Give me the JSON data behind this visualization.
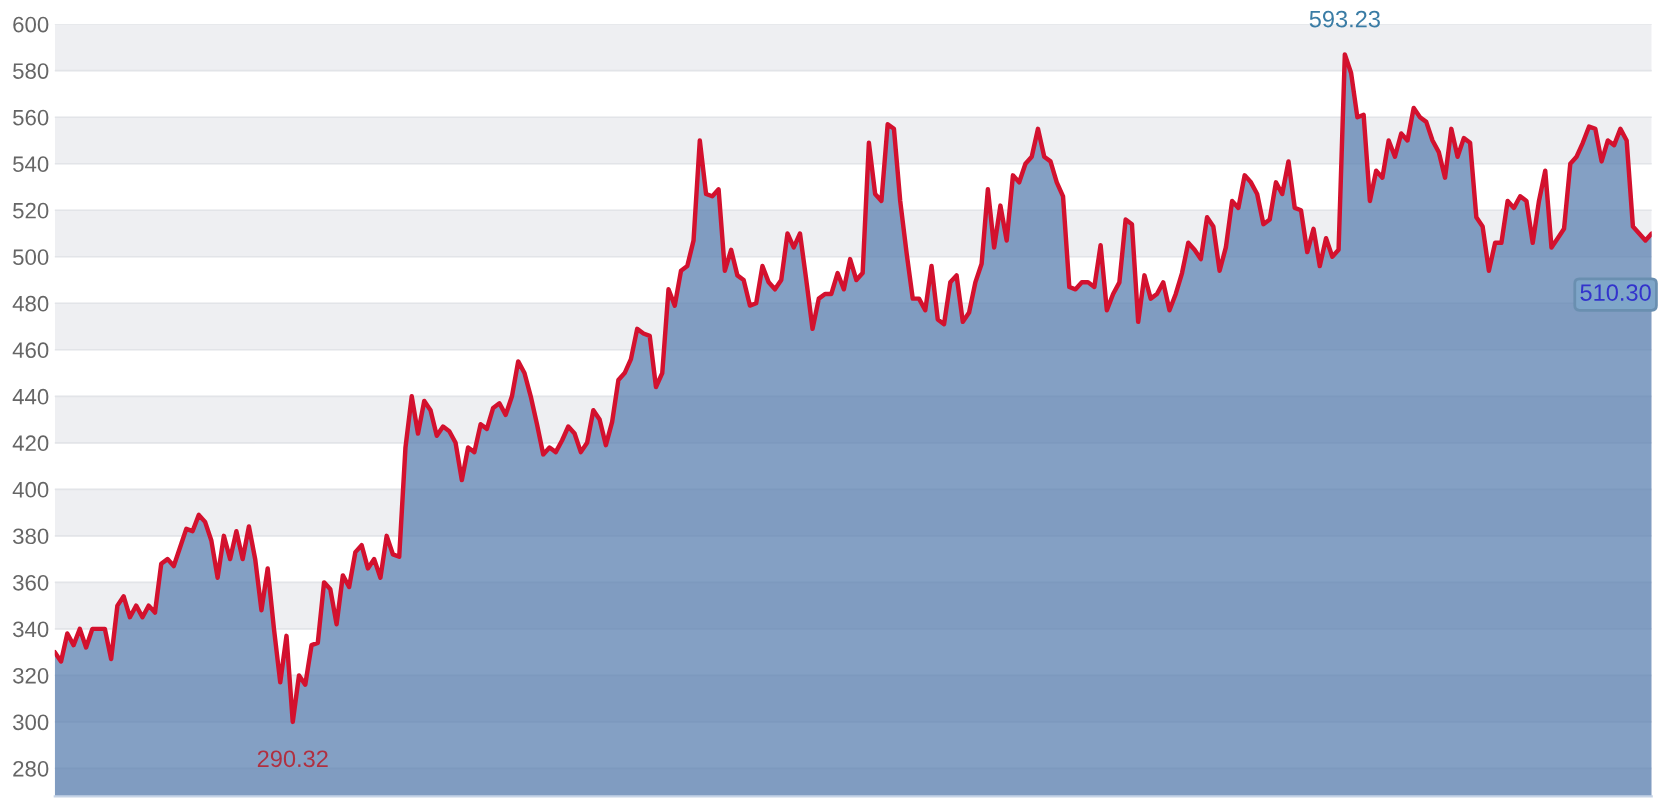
{
  "chart_data": {
    "type": "area",
    "categories": [
      null,
      null,
      null,
      null,
      null,
      null,
      null,
      null,
      null,
      null,
      null,
      null,
      null,
      null,
      null,
      null,
      null,
      null,
      null,
      null,
      null,
      null,
      null,
      null,
      null,
      null,
      null,
      null,
      null,
      null,
      null,
      null,
      null,
      null,
      null,
      null,
      null,
      null,
      null,
      null,
      null,
      null,
      null,
      null,
      null,
      null,
      null,
      null,
      null,
      null,
      null,
      null,
      null,
      null,
      null,
      null,
      null,
      null,
      null,
      null,
      null,
      null,
      null,
      null,
      null,
      null,
      null,
      null,
      null,
      null,
      null,
      null,
      null,
      null,
      null,
      null,
      null,
      null,
      null,
      null,
      null,
      null,
      null,
      null,
      null,
      null,
      null,
      null,
      null,
      null,
      null,
      null,
      null,
      null,
      null,
      null,
      null,
      null,
      null,
      null,
      null,
      null,
      null,
      null,
      null,
      null,
      null,
      null,
      null,
      null,
      null,
      null,
      null,
      null,
      null,
      null,
      null,
      null,
      null,
      null,
      null,
      null,
      null,
      null,
      null,
      null,
      null,
      null,
      null,
      null,
      null,
      null,
      null,
      null,
      null,
      null,
      null,
      null,
      null,
      null,
      null,
      null,
      null,
      null,
      null,
      null,
      null,
      null,
      null,
      null,
      null,
      null,
      null,
      null,
      null,
      null,
      null,
      null,
      null,
      null,
      null,
      null,
      null,
      null,
      null,
      null,
      null,
      null,
      null,
      null,
      null,
      null,
      null,
      null,
      null,
      null,
      null,
      null,
      null,
      null,
      null,
      null,
      null,
      null,
      null,
      null,
      null,
      null,
      null,
      null,
      null,
      null,
      null,
      null,
      null,
      null,
      null,
      null,
      null,
      null,
      null,
      null,
      null,
      null,
      null,
      null,
      null,
      null,
      null,
      null,
      null,
      null,
      null,
      null,
      null,
      null,
      null,
      null,
      null,
      null,
      null,
      null,
      null,
      null,
      null,
      null,
      null,
      null,
      null,
      null,
      null,
      null,
      null,
      null,
      null,
      null,
      null,
      null,
      null,
      null,
      null,
      null,
      null,
      null,
      null,
      null,
      null,
      null,
      null,
      null,
      null,
      null,
      null,
      null,
      null,
      null
    ],
    "series": [
      {
        "color": "#5b80b0",
        "values": [
          330,
          326,
          338,
          333,
          340,
          332,
          340,
          340,
          340,
          327,
          350,
          354,
          345,
          350,
          345,
          350,
          347,
          368,
          370,
          367,
          375,
          383,
          382,
          389,
          386,
          378,
          362,
          380,
          370,
          382,
          370,
          384,
          370,
          348,
          366,
          340,
          317,
          337,
          300,
          320,
          316,
          333,
          334,
          360,
          357,
          342,
          363,
          358,
          373,
          376,
          366,
          370,
          362,
          380,
          372,
          371,
          418,
          440,
          424,
          438,
          434,
          423,
          427,
          425,
          420,
          404,
          418,
          416,
          428,
          426,
          435,
          437,
          432,
          440,
          455,
          450,
          440,
          428,
          415,
          418,
          416,
          421,
          427,
          424,
          416,
          420,
          434,
          430,
          419,
          429,
          447,
          450,
          456,
          469,
          467,
          466,
          444,
          450,
          486,
          479,
          494,
          496,
          507,
          550,
          527,
          526,
          529,
          494,
          503,
          492,
          490,
          479,
          480,
          496,
          489,
          486,
          490,
          510,
          504,
          510,
          490,
          469,
          482,
          484,
          484,
          493,
          486,
          499,
          490,
          493,
          549,
          527,
          524,
          557,
          555,
          524,
          502,
          482,
          482,
          477,
          496,
          473,
          471,
          489,
          492,
          472,
          476,
          489,
          497,
          529,
          504,
          522,
          507,
          535,
          532,
          540,
          543,
          555,
          543,
          541,
          532,
          526,
          487,
          486,
          489,
          489,
          487,
          505,
          477,
          484,
          489,
          516,
          514,
          472,
          492,
          482,
          484,
          489,
          477,
          484,
          493,
          506,
          503,
          499,
          517,
          513,
          494,
          504,
          524,
          521,
          535,
          532,
          527,
          514,
          516,
          532,
          527,
          541,
          521,
          520,
          502,
          512,
          496,
          508,
          500,
          503,
          587,
          579,
          560,
          561,
          524,
          537,
          534,
          550,
          543,
          553,
          550,
          564,
          560,
          558,
          550,
          545,
          534,
          555,
          543,
          551,
          549,
          517,
          513,
          494,
          506,
          506,
          524,
          521,
          526,
          524,
          506,
          524,
          537,
          504,
          508,
          512,
          540,
          543,
          549,
          556,
          555,
          541,
          550,
          548,
          555,
          550,
          513,
          510,
          507,
          510
        ]
      },
      {
        "color": "#d3112e",
        "type": "line",
        "values": [
          330,
          326,
          338,
          333,
          340,
          332,
          340,
          340,
          340,
          327,
          350,
          354,
          345,
          350,
          345,
          350,
          347,
          368,
          370,
          367,
          375,
          383,
          382,
          389,
          386,
          378,
          362,
          380,
          370,
          382,
          370,
          384,
          370,
          348,
          366,
          340,
          317,
          337,
          300,
          320,
          316,
          333,
          334,
          360,
          357,
          342,
          363,
          358,
          373,
          376,
          366,
          370,
          362,
          380,
          372,
          371,
          418,
          440,
          424,
          438,
          434,
          423,
          427,
          425,
          420,
          404,
          418,
          416,
          428,
          426,
          435,
          437,
          432,
          440,
          455,
          450,
          440,
          428,
          415,
          418,
          416,
          421,
          427,
          424,
          416,
          420,
          434,
          430,
          419,
          429,
          447,
          450,
          456,
          469,
          467,
          466,
          444,
          450,
          486,
          479,
          494,
          496,
          507,
          550,
          527,
          526,
          529,
          494,
          503,
          492,
          490,
          479,
          480,
          496,
          489,
          486,
          490,
          510,
          504,
          510,
          490,
          469,
          482,
          484,
          484,
          493,
          486,
          499,
          490,
          493,
          549,
          527,
          524,
          557,
          555,
          524,
          502,
          482,
          482,
          477,
          496,
          473,
          471,
          489,
          492,
          472,
          476,
          489,
          497,
          529,
          504,
          522,
          507,
          535,
          532,
          540,
          543,
          555,
          543,
          541,
          532,
          526,
          487,
          486,
          489,
          489,
          487,
          505,
          477,
          484,
          489,
          516,
          514,
          472,
          492,
          482,
          484,
          489,
          477,
          484,
          493,
          506,
          503,
          499,
          517,
          513,
          494,
          504,
          524,
          521,
          535,
          532,
          527,
          514,
          516,
          532,
          527,
          541,
          521,
          520,
          502,
          512,
          496,
          508,
          500,
          503,
          587,
          579,
          560,
          561,
          524,
          537,
          534,
          550,
          543,
          553,
          550,
          564,
          560,
          558,
          550,
          545,
          534,
          555,
          543,
          551,
          549,
          517,
          513,
          494,
          506,
          506,
          524,
          521,
          526,
          524,
          506,
          524,
          537,
          504,
          508,
          512,
          540,
          543,
          549,
          556,
          555,
          541,
          550,
          548,
          555,
          550,
          513,
          510,
          507,
          510
        ]
      }
    ],
    "ylim": [
      268,
      600
    ],
    "yticks": [
      280,
      300,
      320,
      340,
      360,
      380,
      400,
      420,
      440,
      460,
      480,
      500,
      520,
      540,
      560,
      580,
      600
    ],
    "grid": "y",
    "tick_labels": "y",
    "annotations": [
      "593.23",
      "290.32",
      "510.30"
    ]
  }
}
